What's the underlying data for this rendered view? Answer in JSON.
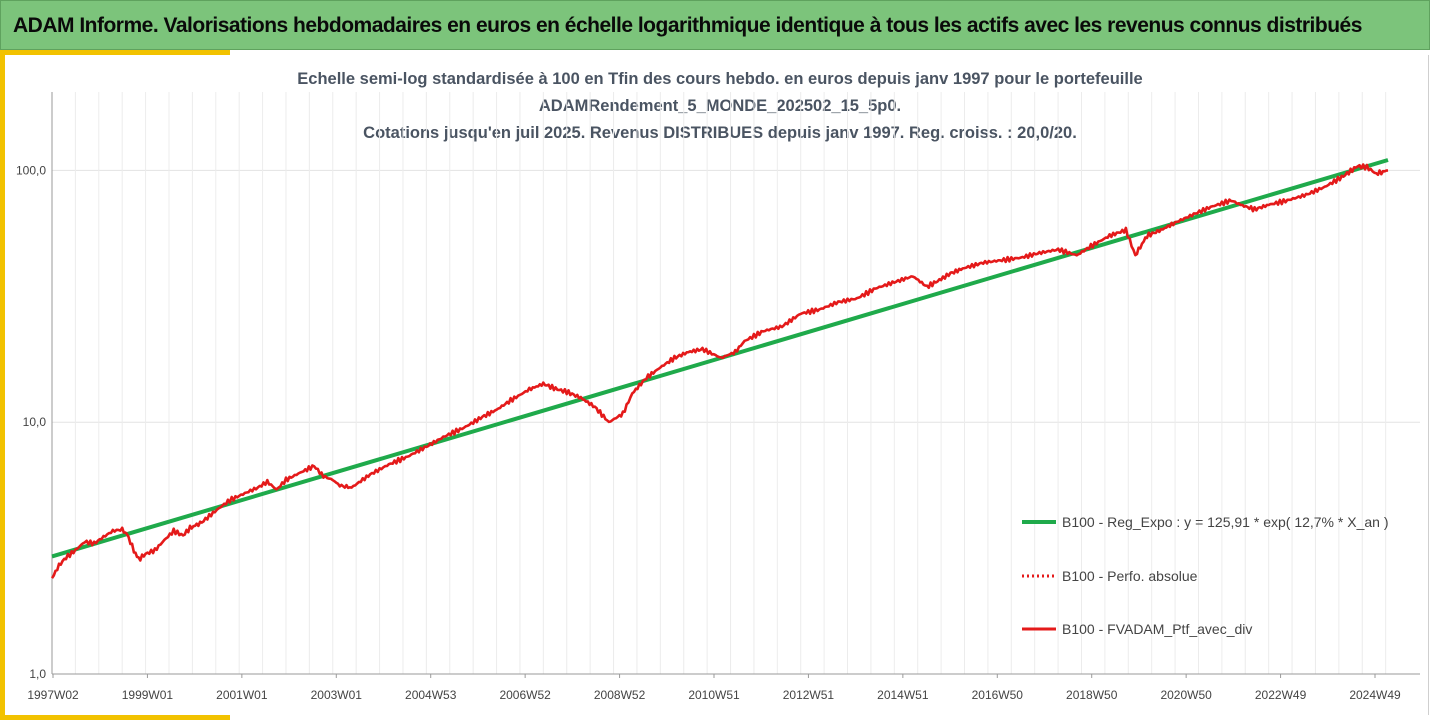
{
  "header": {
    "banner": "ADAM Informe. Valorisations hebdomadaires en euros en échelle logarithmique identique à tous les actifs avec les revenus connus distribués"
  },
  "chart_data": {
    "type": "line",
    "title_lines": [
      "Echelle semi-log standardisée à 100 en Tfin des cours hebdo.  en euros depuis janv 1997 pour le portefeuille",
      "ADAMRendement_5_MONDE_202502_15_5p0.",
      "Cotations  jusqu'en juil 2025. Revenus DISTRIBUES depuis janv 1997. Reg. croiss. : 20,0/20."
    ],
    "y_scale": "log",
    "ylim": [
      1,
      100
    ],
    "y_ticks": [
      {
        "value": 1,
        "label": "1,0"
      },
      {
        "value": 10,
        "label": "10,0"
      },
      {
        "value": 100,
        "label": "100,0"
      }
    ],
    "x_ticks": [
      "1997W02",
      "1999W01",
      "2001W01",
      "2003W01",
      "2004W53",
      "2006W52",
      "2008W52",
      "2010W51",
      "2012W51",
      "2014W51",
      "2016W50",
      "2018W50",
      "2020W50",
      "2022W49",
      "2024W49"
    ],
    "grid": true,
    "legend_position": "bottom-right",
    "colors": {
      "regression": "#1faa4b",
      "absolue": "#e41a1a",
      "portfolio": "#e41a1a"
    },
    "series": [
      {
        "name": "B100 - Reg_Expo : y = 125,91 * exp( 12,7% *  X_an )",
        "key": "regression",
        "style": "solid",
        "x": [
          1997.0,
          2025.55
        ],
        "y": [
          2.93,
          110.0
        ]
      },
      {
        "name": "B100 - Perfo. absolue",
        "key": "absolue",
        "style": "dotted",
        "x": [],
        "y": []
      },
      {
        "name": "B100 - FVADAM_Ptf_avec_div",
        "key": "portfolio",
        "style": "solid",
        "x": [
          1997.0,
          1997.15,
          1997.3,
          1997.5,
          1997.7,
          1997.9,
          1998.1,
          1998.3,
          1998.5,
          1998.6,
          1998.75,
          1998.85,
          1999.0,
          1999.2,
          1999.4,
          1999.6,
          1999.8,
          1999.95,
          2000.2,
          2000.4,
          2000.6,
          2000.8,
          2001.0,
          2001.2,
          2001.4,
          2001.6,
          2001.8,
          2002.0,
          2002.3,
          2002.6,
          2002.8,
          2003.0,
          2003.15,
          2003.4,
          2003.8,
          2004.2,
          2004.6,
          2005.0,
          2005.4,
          2005.8,
          2006.2,
          2006.5,
          2006.8,
          2007.2,
          2007.5,
          2007.8,
          2008.0,
          2008.3,
          2008.6,
          2008.9,
          2009.2,
          2009.4,
          2009.7,
          2010.0,
          2010.3,
          2010.6,
          2010.9,
          2011.3,
          2011.6,
          2011.8,
          2012.2,
          2012.6,
          2013.0,
          2013.4,
          2013.8,
          2014.2,
          2014.6,
          2015.0,
          2015.4,
          2015.7,
          2016.0,
          2016.2,
          2016.5,
          2016.9,
          2017.3,
          2017.7,
          2018.1,
          2018.5,
          2018.9,
          2019.2,
          2019.6,
          2019.95,
          2020.15,
          2020.4,
          2020.7,
          2021.0,
          2021.4,
          2021.8,
          2022.2,
          2022.4,
          2022.7,
          2023.0,
          2023.4,
          2023.8,
          2024.2,
          2024.6,
          2024.9,
          2025.1,
          2025.3,
          2025.55
        ],
        "y": [
          2.4,
          2.7,
          2.9,
          3.1,
          3.35,
          3.3,
          3.5,
          3.7,
          3.75,
          3.6,
          3.1,
          2.85,
          3.0,
          3.1,
          3.4,
          3.7,
          3.55,
          3.8,
          4.0,
          4.3,
          4.6,
          4.9,
          5.1,
          5.3,
          5.5,
          5.8,
          5.4,
          5.9,
          6.3,
          6.7,
          6.1,
          5.9,
          5.6,
          5.5,
          6.2,
          6.8,
          7.3,
          8.0,
          8.8,
          9.5,
          10.5,
          11.2,
          12.2,
          13.5,
          14.2,
          13.5,
          13.2,
          12.5,
          11.5,
          10.0,
          10.8,
          13.0,
          15.0,
          16.5,
          18.0,
          19.0,
          19.5,
          18.0,
          19.0,
          21.0,
          23.0,
          24.0,
          27.0,
          28.0,
          30.0,
          31.0,
          34.0,
          36.0,
          38.0,
          34.5,
          37.0,
          39.0,
          41.0,
          43.0,
          44.0,
          45.0,
          47.0,
          48.5,
          46.0,
          50.0,
          55.0,
          58.0,
          46.0,
          55.0,
          58.0,
          62.0,
          67.0,
          72.0,
          76.0,
          73.0,
          70.0,
          73.0,
          76.0,
          80.0,
          86.0,
          95.0,
          104.0,
          103.0,
          97.0,
          100.0
        ]
      }
    ]
  }
}
